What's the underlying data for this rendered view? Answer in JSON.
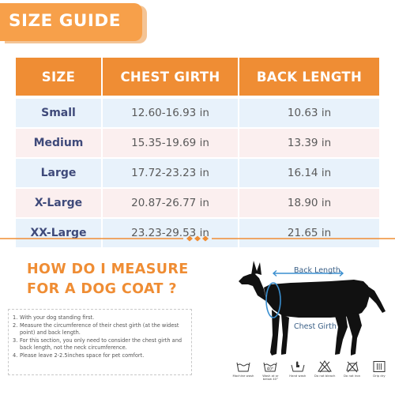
{
  "header": {
    "title": "SIZE GUIDE"
  },
  "table": {
    "columns": [
      "SIZE",
      "CHEST GIRTH",
      "BACK LENGTH"
    ],
    "rows": [
      {
        "size": "Small",
        "chest": "12.60-16.93 in",
        "back": "10.63 in"
      },
      {
        "size": "Medium",
        "chest": "15.35-19.69 in",
        "back": "13.39 in"
      },
      {
        "size": "Large",
        "chest": "17.72-23.23 in",
        "back": "16.14 in"
      },
      {
        "size": "X-Large",
        "chest": "20.87-26.77 in",
        "back": "18.90 in"
      },
      {
        "size": "XX-Large",
        "chest": "23.23-29.53 in",
        "back": "21.65 in"
      }
    ]
  },
  "measure": {
    "title_line1": "HOW DO I MEASURE",
    "title_line2": "FOR A DOG COAT ?",
    "instructions": [
      {
        "num": "1.",
        "text": "With your dog standing first."
      },
      {
        "num": "2.",
        "text": "Measure the circumference of their chest girth (at the widest point) and back length."
      },
      {
        "num": "3.",
        "text": "For this section, you only need to consider the chest girth and back length, not the neck circumference."
      },
      {
        "num": "4.",
        "text": "Please leave 2-2.5inches space for pet comfort."
      }
    ],
    "diagram_labels": {
      "back_length": "Back Length",
      "chest_girth": "Chest Girth"
    }
  },
  "care": {
    "items": [
      {
        "icon": "machine-wash-icon",
        "caption": "Machine wash"
      },
      {
        "icon": "wash-40-icon",
        "caption": "Wash at or below 40°"
      },
      {
        "icon": "hand-wash-icon",
        "caption": "Hand wash"
      },
      {
        "icon": "do-not-bleach-icon",
        "caption": "Do not bleach"
      },
      {
        "icon": "do-not-iron-icon",
        "caption": "Do not iron"
      },
      {
        "icon": "drip-dry-icon",
        "caption": "Drip dry"
      }
    ]
  },
  "colors": {
    "accent_orange": "#ef8d34",
    "banner_orange": "#f7a04a",
    "row_blue": "#e8f2fb",
    "row_pink": "#fbefef",
    "size_text": "#3f4a7a",
    "diagram_blue": "#3a8fd0"
  }
}
